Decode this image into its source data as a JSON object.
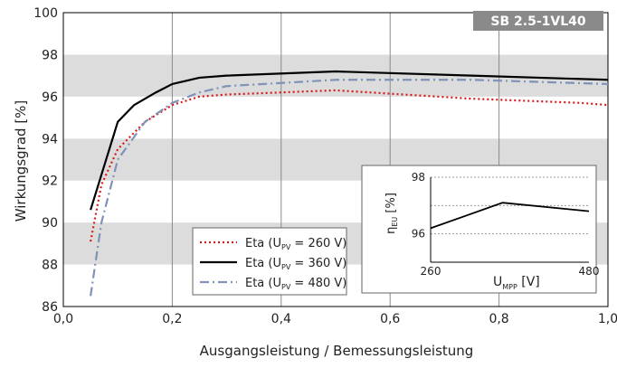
{
  "chart_data": [
    {
      "type": "line",
      "badge": "SB 2.5-1VL40",
      "xlabel": "Ausgangsleistung / Bemessungsleistung",
      "ylabel": "Wirkungsgrad [%]",
      "xlim": [
        0,
        1
      ],
      "ylim": [
        86,
        100
      ],
      "x_ticks": [
        "0,0",
        "0,2",
        "0,4",
        "0,6",
        "0,8",
        "1,0"
      ],
      "y_ticks": [
        "86",
        "88",
        "90",
        "92",
        "94",
        "96",
        "98",
        "100"
      ],
      "grid": "vertical lines at x ticks, alternating grey horizontal bands",
      "legend_position": "lower-middle",
      "series": [
        {
          "name": "Eta (U_PV = 260 V)",
          "label_main": "Eta (U",
          "label_sub": "PV",
          "label_tail": " = 260 V)",
          "color": "#d7191c",
          "style": "dotted",
          "x": [
            0.05,
            0.07,
            0.1,
            0.15,
            0.2,
            0.25,
            0.3,
            0.5,
            0.75,
            0.95,
            1.0
          ],
          "y": [
            89.1,
            91.8,
            93.5,
            94.8,
            95.6,
            96.0,
            96.1,
            96.3,
            95.9,
            95.7,
            95.6
          ]
        },
        {
          "name": "Eta (U_PV = 360 V)",
          "label_main": "Eta (U",
          "label_sub": "PV",
          "label_tail": " = 360 V)",
          "color": "#000000",
          "style": "solid",
          "x": [
            0.05,
            0.1,
            0.13,
            0.17,
            0.2,
            0.25,
            0.3,
            0.5,
            0.75,
            1.0
          ],
          "y": [
            90.6,
            94.8,
            95.6,
            96.2,
            96.6,
            96.9,
            97.0,
            97.2,
            97.0,
            96.8
          ]
        },
        {
          "name": "Eta (U_PV = 480 V)",
          "label_main": "Eta (U",
          "label_sub": "PV",
          "label_tail": " = 480 V)",
          "color": "#7f93b8",
          "style": "dashdot",
          "x": [
            0.05,
            0.07,
            0.1,
            0.15,
            0.2,
            0.25,
            0.3,
            0.5,
            0.75,
            1.0
          ],
          "y": [
            86.5,
            90.0,
            93.0,
            94.8,
            95.7,
            96.2,
            96.5,
            96.8,
            96.8,
            96.6
          ]
        }
      ]
    },
    {
      "type": "line",
      "title": "inset",
      "xlabel_main": "U",
      "xlabel_sub": "MPP",
      "xlabel_tail": " [V]",
      "ylabel_main": "η",
      "ylabel_sub": "EU",
      "ylabel_tail": " [%]",
      "xlim": [
        260,
        480
      ],
      "ylim": [
        95,
        98
      ],
      "x_ticks": [
        "260",
        "480"
      ],
      "y_ticks": [
        "96",
        "98"
      ],
      "series": [
        {
          "color": "#000000",
          "x": [
            260,
            360,
            480
          ],
          "y": [
            96.2,
            97.1,
            96.8
          ]
        }
      ]
    }
  ]
}
